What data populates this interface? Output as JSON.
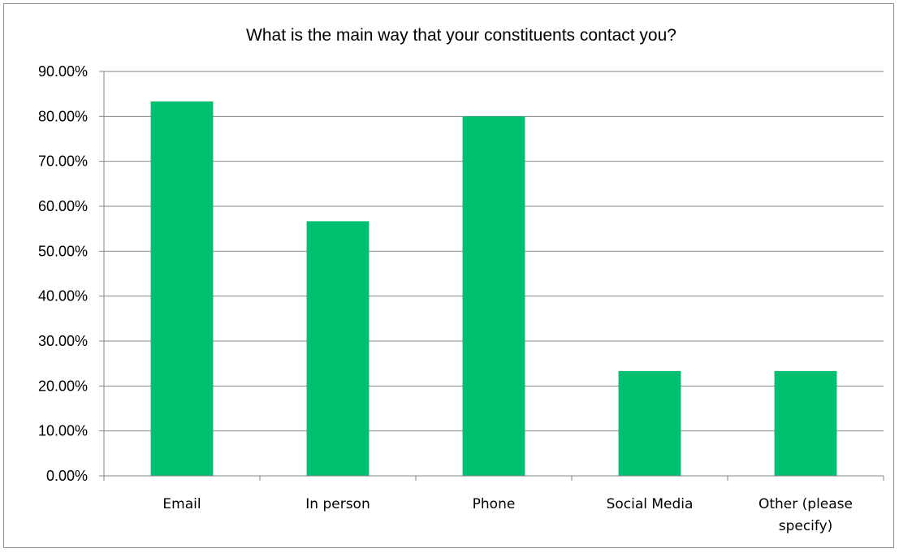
{
  "chart_data": {
    "type": "bar",
    "title": "What is the main way that your constituents contact you?",
    "categories": [
      "Email",
      "In person",
      "Phone",
      "Social Media",
      "Other (please specify)"
    ],
    "category_lines": [
      [
        "Email"
      ],
      [
        "In person"
      ],
      [
        "Phone"
      ],
      [
        "Social Media"
      ],
      [
        "Other (please",
        "specify)"
      ]
    ],
    "values": [
      83.33,
      56.67,
      80.0,
      23.33,
      23.33
    ],
    "ylim": [
      0,
      90
    ],
    "yticks": [
      0,
      10,
      20,
      30,
      40,
      50,
      60,
      70,
      80,
      90
    ],
    "ytick_labels": [
      "0.00%",
      "10.00%",
      "20.00%",
      "30.00%",
      "40.00%",
      "50.00%",
      "60.00%",
      "70.00%",
      "80.00%",
      "90.00%"
    ],
    "grid": true,
    "legend": "none",
    "bar_color": "#00BF6F",
    "gridline_color": "#868686"
  }
}
